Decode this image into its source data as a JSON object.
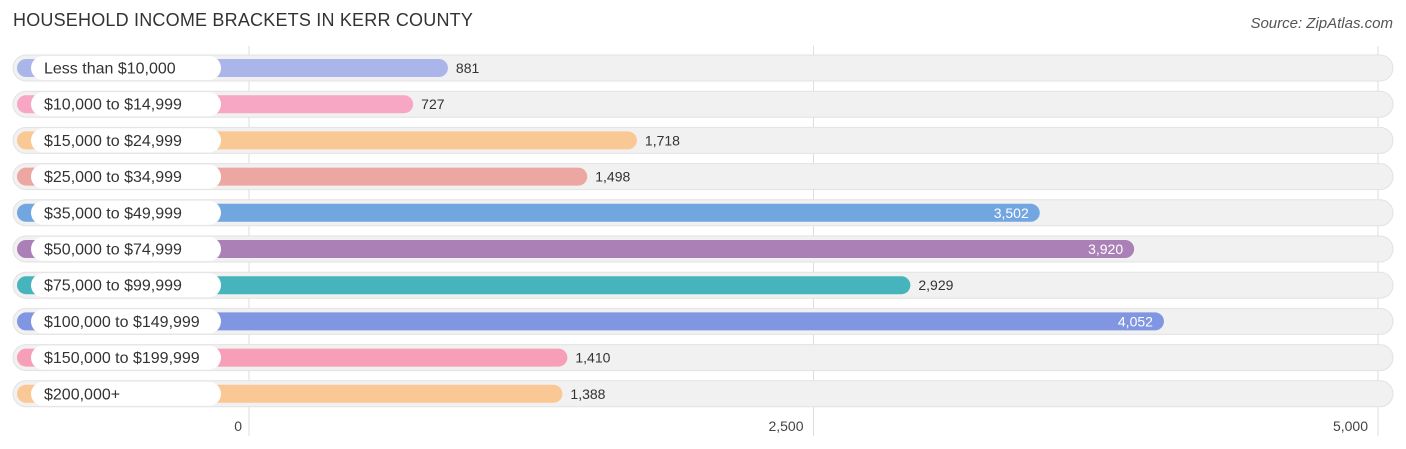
{
  "title": "HOUSEHOLD INCOME BRACKETS IN KERR COUNTY",
  "source": "Source: ZipAtlas.com",
  "chart_data": {
    "type": "bar",
    "orientation": "horizontal",
    "categories": [
      "Less than $10,000",
      "$10,000 to $14,999",
      "$15,000 to $24,999",
      "$25,000 to $34,999",
      "$35,000 to $49,999",
      "$50,000 to $74,999",
      "$75,000 to $99,999",
      "$100,000 to $149,999",
      "$150,000 to $199,999",
      "$200,000+"
    ],
    "values": [
      881,
      727,
      1718,
      1498,
      3502,
      3920,
      2929,
      4052,
      1410,
      1388
    ],
    "value_labels": [
      "881",
      "727",
      "1,718",
      "1,498",
      "3,502",
      "3,920",
      "2,929",
      "4,052",
      "1,410",
      "1,388"
    ],
    "colors": [
      "#aab6ea",
      "#f7a6c3",
      "#f9c894",
      "#eca7a2",
      "#71a6e0",
      "#ab80b7",
      "#46b4bc",
      "#8196e2",
      "#f79eb8",
      "#f9c894"
    ],
    "xlim": [
      0,
      5000
    ],
    "xticks": [
      0,
      2500,
      5000
    ],
    "xtick_labels": [
      "0",
      "2,500",
      "5,000"
    ],
    "grid": true
  }
}
